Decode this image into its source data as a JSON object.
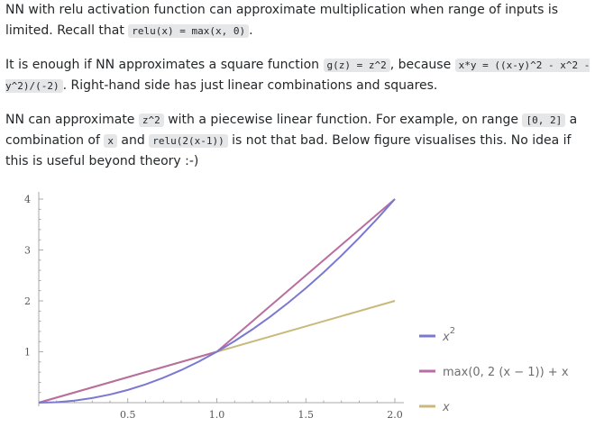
{
  "post": {
    "p1": {
      "t1": "NN with relu activation function can approximate multiplication when range of inputs is limited. Recall that ",
      "c1": "relu(x) = max(x, 0)",
      "t2": "."
    },
    "p2": {
      "t1": "It is enough if NN approximates a square function ",
      "c1": "g(z) = z^2",
      "t2": ", because ",
      "c2": "x*y = ((x-y)^2 - x^2 - y^2)/(-2)",
      "t3": ". Right-hand side has just linear combinations and squares."
    },
    "p3": {
      "t1": "NN can approximate ",
      "c1": "z^2",
      "t2": " with a piecewise linear function. For example, on range ",
      "c2": "[0, 2]",
      "t3": " a combination of ",
      "c3": "x",
      "t4": " and ",
      "c4": "relu(2(x-1))",
      "t5": " is not that bad. Below figure visualises this. No idea if this is useful beyond theory :-)"
    }
  },
  "chart_data": {
    "type": "line",
    "xlim": [
      0,
      2
    ],
    "ylim": [
      0,
      4
    ],
    "x_ticks": [
      "0.5",
      "1.0",
      "1.5",
      "2.0"
    ],
    "y_ticks": [
      "1",
      "2",
      "3",
      "4"
    ],
    "grid": false,
    "legend_position": "right",
    "series": [
      {
        "name": "x",
        "name_sup": "2",
        "color": "#7b78d1",
        "x": [
          0,
          0.1,
          0.2,
          0.3,
          0.4,
          0.5,
          0.6,
          0.7,
          0.8,
          0.9,
          1.0,
          1.1,
          1.2,
          1.3,
          1.4,
          1.5,
          1.6,
          1.7,
          1.8,
          1.9,
          2.0
        ],
        "y": [
          0,
          0.01,
          0.04,
          0.09,
          0.16,
          0.25,
          0.36,
          0.49,
          0.64,
          0.81,
          1.0,
          1.21,
          1.44,
          1.69,
          1.96,
          2.25,
          2.56,
          2.89,
          3.24,
          3.61,
          4.0
        ]
      },
      {
        "name": "max(0, 2 (x − 1)) + x",
        "color": "#b86ea0",
        "x": [
          0,
          1,
          2
        ],
        "y": [
          0,
          1,
          4
        ]
      },
      {
        "name": "x",
        "color": "#c9b97a",
        "x": [
          0,
          2
        ],
        "y": [
          0,
          2
        ]
      }
    ]
  }
}
